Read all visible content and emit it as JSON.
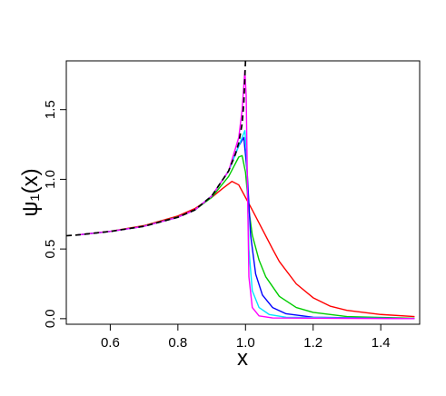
{
  "chart_data": {
    "type": "line",
    "xlabel": "x",
    "ylabel": "ψ₁(x)",
    "xlim": [
      0.47,
      1.515
    ],
    "ylim": [
      -0.04,
      1.85
    ],
    "xticks": [
      0.6,
      0.8,
      1.0,
      1.2,
      1.4
    ],
    "xtick_labels": [
      "0.6",
      "0.8",
      "1.0",
      "1.2",
      "1.4"
    ],
    "yticks": [
      0.0,
      0.5,
      1.0,
      1.5
    ],
    "ytick_labels": [
      "0.0",
      "0.5",
      "1.0",
      "1.5"
    ],
    "grid": false,
    "legend": false,
    "series": [
      {
        "color": "#ff0000",
        "points": [
          [
            0.5,
            0.601
          ],
          [
            0.6,
            0.627
          ],
          [
            0.7,
            0.668
          ],
          [
            0.8,
            0.737
          ],
          [
            0.85,
            0.79
          ],
          [
            0.9,
            0.87
          ],
          [
            0.93,
            0.93
          ],
          [
            0.96,
            0.985
          ],
          [
            0.98,
            0.96
          ],
          [
            1.0,
            0.87
          ],
          [
            1.02,
            0.78
          ],
          [
            1.05,
            0.64
          ],
          [
            1.08,
            0.5
          ],
          [
            1.1,
            0.41
          ],
          [
            1.15,
            0.25
          ],
          [
            1.2,
            0.15
          ],
          [
            1.25,
            0.09
          ],
          [
            1.3,
            0.06
          ],
          [
            1.4,
            0.03
          ],
          [
            1.5,
            0.015
          ]
        ]
      },
      {
        "color": "#00cc00",
        "points": [
          [
            0.5,
            0.6
          ],
          [
            0.6,
            0.626
          ],
          [
            0.7,
            0.664
          ],
          [
            0.8,
            0.73
          ],
          [
            0.85,
            0.78
          ],
          [
            0.9,
            0.87
          ],
          [
            0.95,
            1.02
          ],
          [
            0.98,
            1.16
          ],
          [
            0.99,
            1.17
          ],
          [
            1.0,
            1.05
          ],
          [
            1.01,
            0.78
          ],
          [
            1.02,
            0.6
          ],
          [
            1.04,
            0.42
          ],
          [
            1.06,
            0.3
          ],
          [
            1.1,
            0.16
          ],
          [
            1.15,
            0.08
          ],
          [
            1.2,
            0.045
          ],
          [
            1.3,
            0.015
          ],
          [
            1.5,
            0.003
          ]
        ]
      },
      {
        "color": "#0000ff",
        "points": [
          [
            0.5,
            0.6
          ],
          [
            0.6,
            0.626
          ],
          [
            0.7,
            0.663
          ],
          [
            0.8,
            0.728
          ],
          [
            0.85,
            0.78
          ],
          [
            0.9,
            0.88
          ],
          [
            0.95,
            1.06
          ],
          [
            0.98,
            1.24
          ],
          [
            0.995,
            1.3
          ],
          [
            1.005,
            1.05
          ],
          [
            1.015,
            0.6
          ],
          [
            1.03,
            0.32
          ],
          [
            1.05,
            0.17
          ],
          [
            1.08,
            0.08
          ],
          [
            1.12,
            0.035
          ],
          [
            1.2,
            0.01
          ],
          [
            1.5,
            0.0
          ]
        ]
      },
      {
        "color": "#00e5ff",
        "points": [
          [
            0.5,
            0.6
          ],
          [
            0.6,
            0.626
          ],
          [
            0.7,
            0.663
          ],
          [
            0.8,
            0.728
          ],
          [
            0.85,
            0.78
          ],
          [
            0.9,
            0.88
          ],
          [
            0.95,
            1.06
          ],
          [
            0.98,
            1.24
          ],
          [
            0.998,
            1.35
          ],
          [
            1.003,
            1.2
          ],
          [
            1.01,
            0.5
          ],
          [
            1.02,
            0.2
          ],
          [
            1.04,
            0.08
          ],
          [
            1.07,
            0.03
          ],
          [
            1.12,
            0.01
          ],
          [
            1.5,
            0.0
          ]
        ]
      },
      {
        "color": "#ff00ff",
        "points": [
          [
            0.5,
            0.6
          ],
          [
            0.6,
            0.626
          ],
          [
            0.7,
            0.663
          ],
          [
            0.8,
            0.728
          ],
          [
            0.85,
            0.78
          ],
          [
            0.9,
            0.88
          ],
          [
            0.95,
            1.06
          ],
          [
            0.98,
            1.3
          ],
          [
            0.99,
            1.5
          ],
          [
            0.998,
            1.78
          ],
          [
            1.002,
            1.6
          ],
          [
            1.006,
            0.9
          ],
          [
            1.01,
            0.3
          ],
          [
            1.02,
            0.08
          ],
          [
            1.04,
            0.02
          ],
          [
            1.08,
            0.005
          ],
          [
            1.5,
            0.0
          ]
        ]
      },
      {
        "color": "#000000",
        "dashed": true,
        "points": [
          [
            0.47,
            0.595
          ],
          [
            0.5,
            0.6
          ],
          [
            0.6,
            0.626
          ],
          [
            0.7,
            0.663
          ],
          [
            0.8,
            0.728
          ],
          [
            0.85,
            0.78
          ],
          [
            0.9,
            0.88
          ],
          [
            0.95,
            1.06
          ],
          [
            0.97,
            1.18
          ],
          [
            0.98,
            1.26
          ],
          [
            0.99,
            1.4
          ],
          [
            0.995,
            1.55
          ],
          [
            1.0,
            1.85
          ]
        ]
      }
    ]
  }
}
